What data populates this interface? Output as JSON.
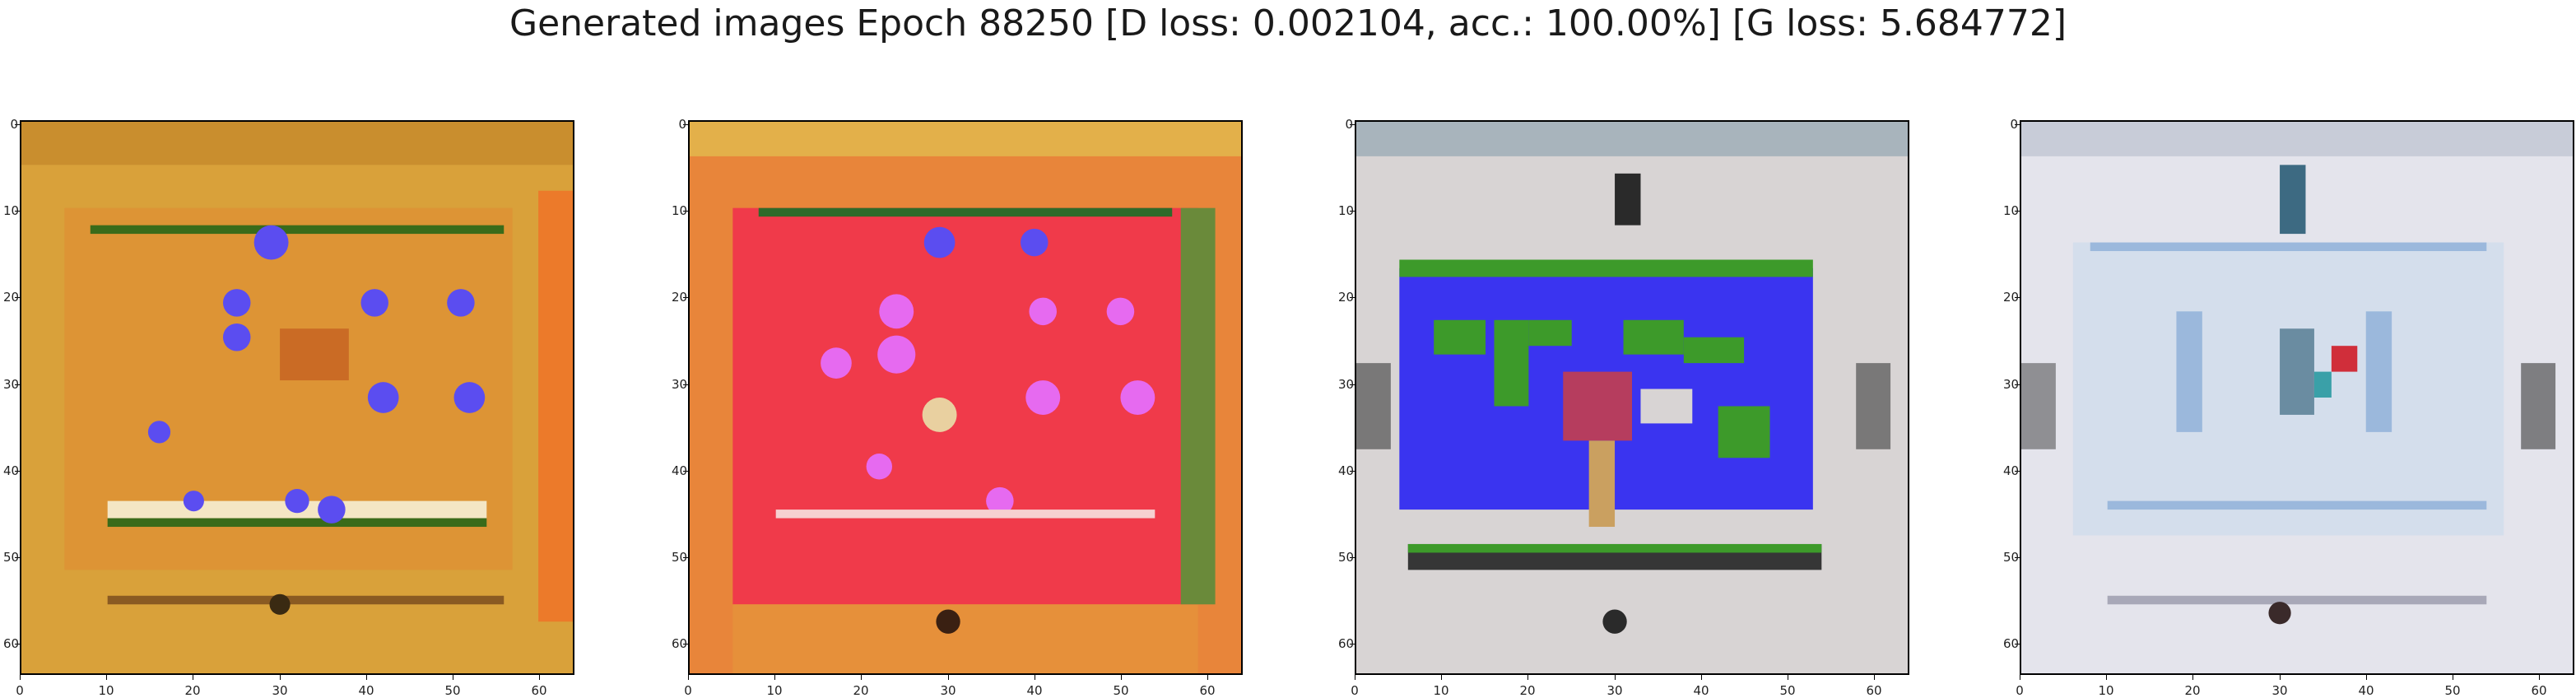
{
  "figure": {
    "title": "Generated images Epoch 88250 [D loss: 0.002104, acc.: 100.00%] [G loss: 5.684772]"
  },
  "axes": {
    "x_ticks": [
      "0",
      "10",
      "20",
      "30",
      "40",
      "50",
      "60"
    ],
    "y_ticks": [
      "0",
      "10",
      "20",
      "30",
      "40",
      "50",
      "60"
    ],
    "range": [
      0,
      63
    ]
  },
  "panels": [
    {
      "name": "generated-image-1",
      "palette": {
        "base": "#d9a13a",
        "accent1": "#e8742a",
        "accent2": "#5b63e8",
        "accent3": "#3f6b1f"
      }
    },
    {
      "name": "generated-image-2",
      "palette": {
        "base": "#e8853a",
        "accent1": "#f03a4a",
        "accent2": "#e66af0",
        "accent3": "#2f6a2a"
      }
    },
    {
      "name": "generated-image-3",
      "palette": {
        "base": "#d8d4d4",
        "accent1": "#3a34f0",
        "accent2": "#3d9a2a",
        "accent3": "#222222"
      }
    },
    {
      "name": "generated-image-4",
      "palette": {
        "base": "#e4e4ec",
        "accent1": "#9bb8dc",
        "accent2": "#3d6a82",
        "accent3": "#d02e3a"
      }
    }
  ]
}
